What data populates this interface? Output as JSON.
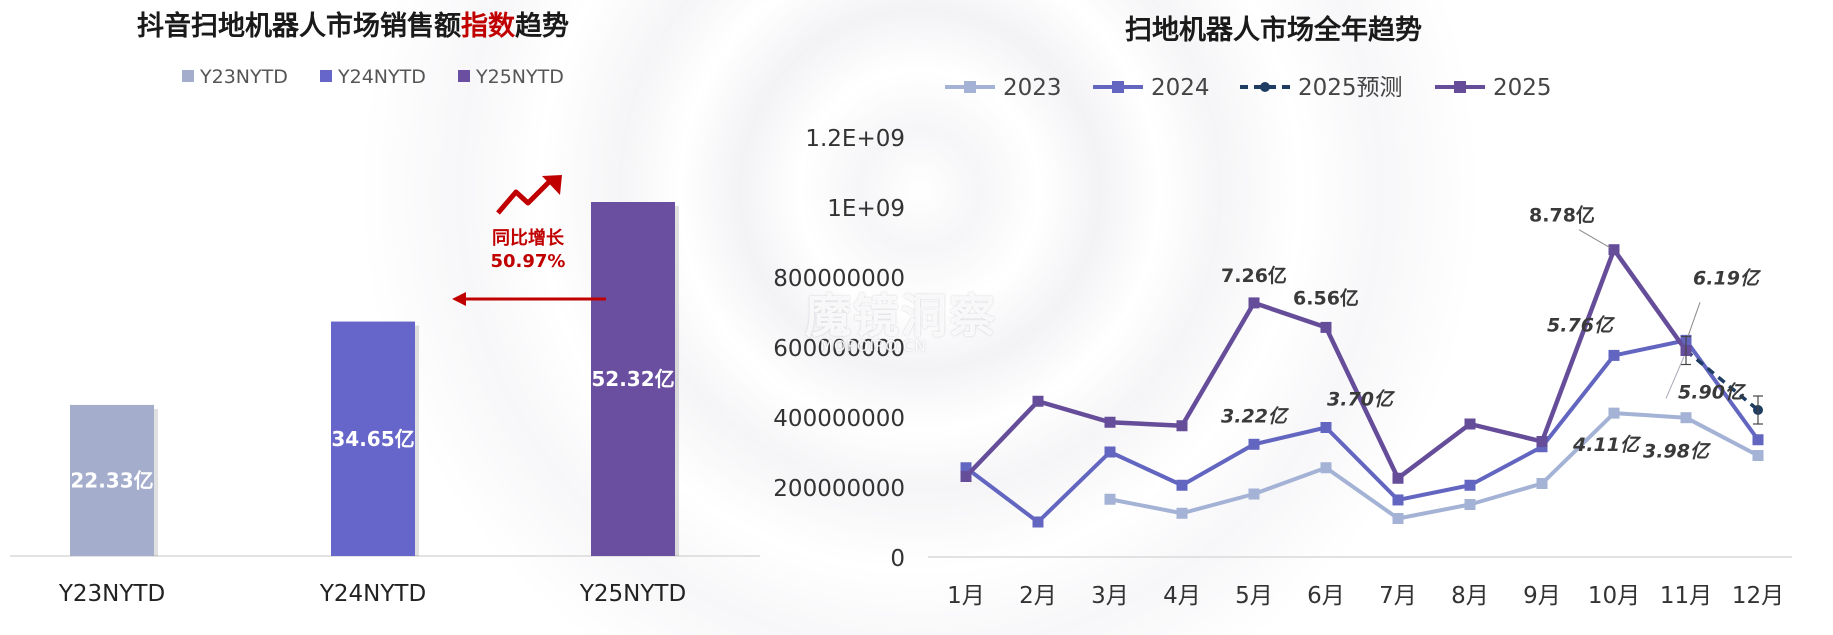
{
  "left": {
    "title_pre": "抖音扫地机器人市场销售额",
    "title_hl": "指数",
    "title_post": "趋势",
    "growth_label": "同比增长",
    "growth_value": "50.97%"
  },
  "right": {
    "title": "扫地机器人市场全年趋势"
  },
  "watermark": {
    "main": "魔镜洞察",
    "sub": "MOPOIPO.CN"
  },
  "colors": {
    "y23": "#a4adcc",
    "y24": "#6665c9",
    "y25": "#6a4fa0",
    "s2023": "#a4b2d6",
    "s2024": "#6366c0",
    "s2025f": "#1f3d63",
    "s2025": "#664d9a",
    "accent": "#c00000"
  },
  "chart_data": [
    {
      "type": "bar",
      "title": "抖音扫地机器人市场销售额指数趋势",
      "categories": [
        "Y23NYTD",
        "Y24NYTD",
        "Y25NYTD"
      ],
      "values": [
        22.33,
        34.65,
        52.32
      ],
      "value_labels": [
        "22.33亿",
        "34.65亿",
        "52.32亿"
      ],
      "legend": [
        "Y23NYTD",
        "Y24NYTD",
        "Y25NYTD"
      ],
      "legend_position": "top",
      "ylim": [
        0,
        55
      ],
      "grid": false
    },
    {
      "type": "line",
      "title": "扫地机器人市场全年趋势",
      "categories": [
        "1月",
        "2月",
        "3月",
        "4月",
        "5月",
        "6月",
        "7月",
        "8月",
        "9月",
        "10月",
        "11月",
        "12月"
      ],
      "yticks": [
        "0",
        "200000000",
        "400000000",
        "600000000",
        "800000000",
        "1E+09",
        "1.2E+09"
      ],
      "ylim": [
        0,
        1200000000
      ],
      "legend_position": "top",
      "grid": false,
      "series": [
        {
          "name": "2023",
          "values": [
            null,
            null,
            165000000,
            125000000,
            180000000,
            255000000,
            110000000,
            150000000,
            210000000,
            411000000,
            398000000,
            290000000
          ]
        },
        {
          "name": "2024",
          "values": [
            255000000,
            100000000,
            300000000,
            205000000,
            322000000,
            370000000,
            163000000,
            205000000,
            315000000,
            576000000,
            619000000,
            335000000
          ]
        },
        {
          "name": "2025预测",
          "values": [
            null,
            null,
            null,
            null,
            null,
            null,
            null,
            null,
            null,
            null,
            590000000,
            420000000
          ]
        },
        {
          "name": "2025",
          "values": [
            230000000,
            445000000,
            385000000,
            375000000,
            726000000,
            656000000,
            225000000,
            380000000,
            330000000,
            878000000,
            590000000,
            null
          ]
        }
      ],
      "annotations": [
        {
          "text": "7.26亿",
          "series": "2025",
          "index": 4
        },
        {
          "text": "6.56亿",
          "series": "2025",
          "index": 5
        },
        {
          "text": "8.78亿",
          "series": "2025",
          "index": 9
        },
        {
          "text": "3.22亿",
          "series": "2024",
          "index": 4
        },
        {
          "text": "3.70亿",
          "series": "2024",
          "index": 5
        },
        {
          "text": "5.76亿",
          "series": "2024",
          "index": 9
        },
        {
          "text": "6.19亿",
          "series": "2024",
          "index": 10
        },
        {
          "text": "5.90亿",
          "series": "2025",
          "index": 10
        },
        {
          "text": "4.11亿",
          "series": "2023",
          "index": 9
        },
        {
          "text": "3.98亿",
          "series": "2023",
          "index": 10
        }
      ]
    }
  ]
}
